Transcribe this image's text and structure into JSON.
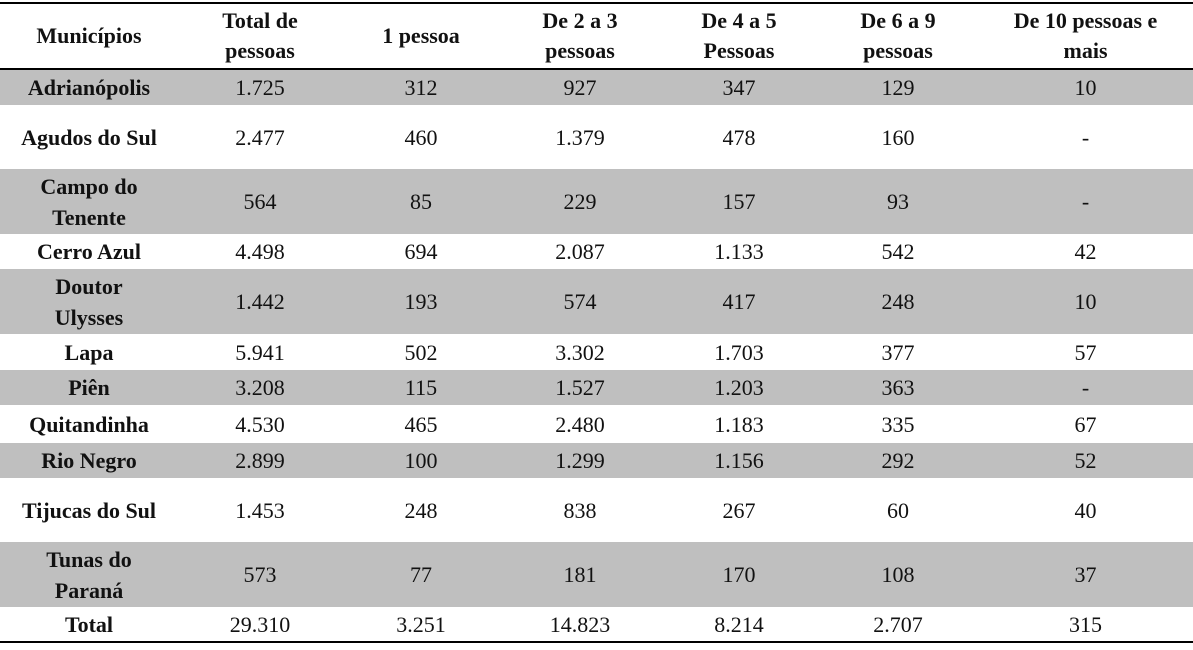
{
  "table": {
    "header": [
      "Municípios",
      "Total de pessoas",
      "1 pessoa",
      "De 2 a 3 pessoas",
      "De 4 a 5 Pessoas",
      "De 6 a 9 pessoas",
      "De 10 pessoas e mais"
    ],
    "rows": [
      [
        "Adrianópolis",
        "1.725",
        "312",
        "927",
        "347",
        "129",
        "10"
      ],
      [
        "Agudos do Sul",
        "2.477",
        "460",
        "1.379",
        "478",
        "160",
        "-"
      ],
      [
        "Campo do Tenente",
        "564",
        "85",
        "229",
        "157",
        "93",
        "-"
      ],
      [
        "Cerro Azul",
        "4.498",
        "694",
        "2.087",
        "1.133",
        "542",
        "42"
      ],
      [
        "Doutor Ulysses",
        "1.442",
        "193",
        "574",
        "417",
        "248",
        "10"
      ],
      [
        "Lapa",
        "5.941",
        "502",
        "3.302",
        "1.703",
        "377",
        "57"
      ],
      [
        "Piên",
        "3.208",
        "115",
        "1.527",
        "1.203",
        "363",
        "-"
      ],
      [
        "Quitandinha",
        "4.530",
        "465",
        "2.480",
        "1.183",
        "335",
        "67"
      ],
      [
        "Rio Negro",
        "2.899",
        "100",
        "1.299",
        "1.156",
        "292",
        "52"
      ],
      [
        "Tijucas do Sul",
        "1.453",
        "248",
        "838",
        "267",
        "60",
        "40"
      ],
      [
        "Tunas do Paraná",
        "573",
        "77",
        "181",
        "170",
        "108",
        "37"
      ],
      [
        "Total",
        "29.310",
        "3.251",
        "14.823",
        "8.214",
        "2.707",
        "315"
      ]
    ]
  }
}
